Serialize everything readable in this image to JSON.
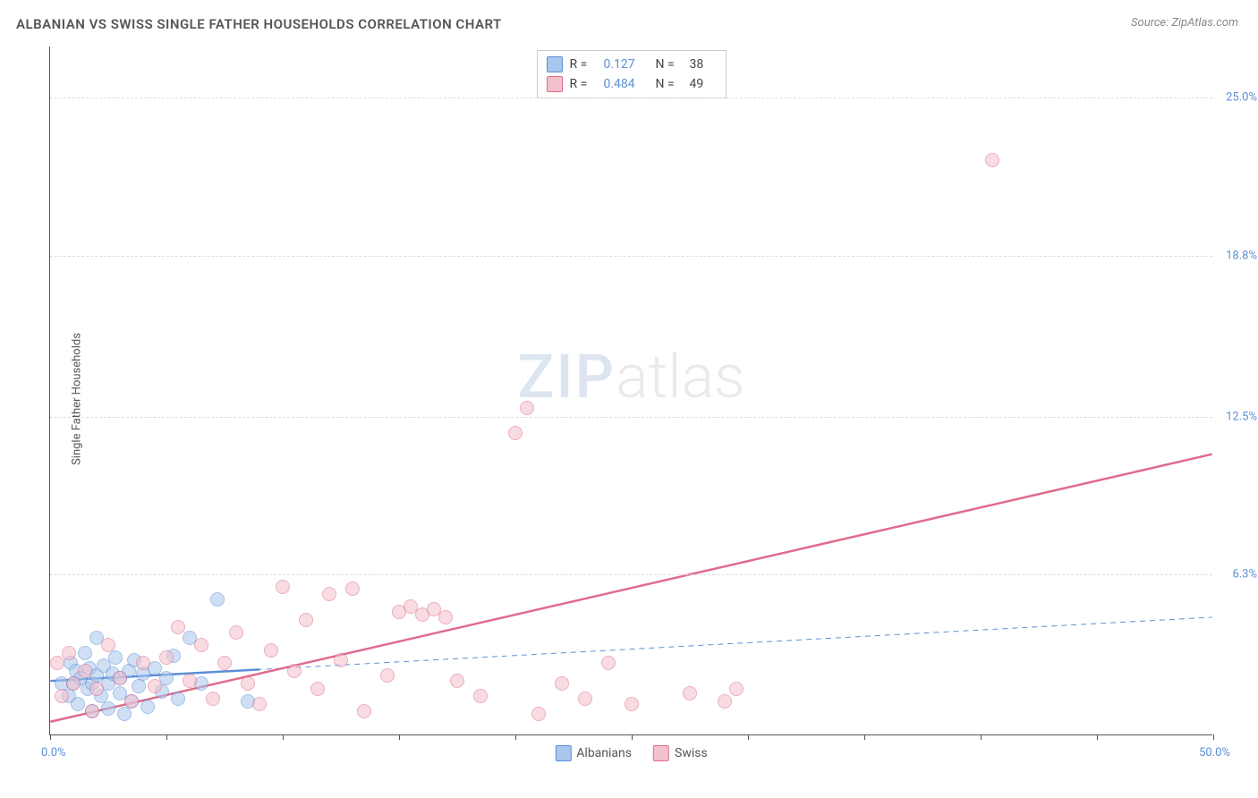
{
  "title": "ALBANIAN VS SWISS SINGLE FATHER HOUSEHOLDS CORRELATION CHART",
  "source_label": "Source:",
  "source_name": "ZipAtlas.com",
  "y_axis_label": "Single Father Households",
  "watermark_zip": "ZIP",
  "watermark_atlas": "atlas",
  "chart": {
    "type": "scatter",
    "background_color": "#ffffff",
    "grid_color": "#dddddd",
    "xlim": [
      0,
      50
    ],
    "ylim": [
      0,
      27
    ],
    "x_ticks": [
      0,
      5,
      10,
      15,
      20,
      25,
      30,
      35,
      40,
      45,
      50
    ],
    "x_tick_label_left": "0.0%",
    "x_tick_label_right": "50.0%",
    "y_gridlines": [
      6.3,
      12.5,
      18.8,
      25.0
    ],
    "y_tick_labels": [
      "6.3%",
      "12.5%",
      "18.8%",
      "25.0%"
    ],
    "marker_radius": 8,
    "marker_opacity": 0.55,
    "axis_label_color": "#5b8fd6",
    "axis_label_fontsize": 13,
    "title_fontsize": 15
  },
  "series": [
    {
      "name": "Albanians",
      "fill_color": "#a9c6ec",
      "stroke_color": "#5b8fd6",
      "R_label": "R =",
      "R": "0.127",
      "N_label": "N =",
      "N": "38",
      "regression": {
        "x1": 0,
        "y1": 2.1,
        "x2": 50,
        "y2": 4.6,
        "dashed": true,
        "width": 1
      },
      "regression_solid_segment": {
        "x1": 0,
        "y1": 2.1,
        "x2": 9,
        "y2": 2.55,
        "width": 2.5
      },
      "points": [
        [
          0.5,
          2.0
        ],
        [
          0.8,
          1.5
        ],
        [
          0.9,
          2.8
        ],
        [
          1.0,
          2.0
        ],
        [
          1.1,
          2.5
        ],
        [
          1.2,
          1.2
        ],
        [
          1.3,
          2.2
        ],
        [
          1.5,
          3.2
        ],
        [
          1.6,
          1.8
        ],
        [
          1.7,
          2.6
        ],
        [
          1.8,
          2.0
        ],
        [
          1.8,
          0.9
        ],
        [
          2.0,
          2.3
        ],
        [
          2.0,
          3.8
        ],
        [
          2.2,
          1.5
        ],
        [
          2.3,
          2.7
        ],
        [
          2.5,
          2.0
        ],
        [
          2.5,
          1.0
        ],
        [
          2.7,
          2.4
        ],
        [
          2.8,
          3.0
        ],
        [
          3.0,
          1.6
        ],
        [
          3.0,
          2.2
        ],
        [
          3.2,
          0.8
        ],
        [
          3.4,
          2.5
        ],
        [
          3.5,
          1.3
        ],
        [
          3.6,
          2.9
        ],
        [
          3.8,
          1.9
        ],
        [
          4.0,
          2.4
        ],
        [
          4.2,
          1.1
        ],
        [
          4.5,
          2.6
        ],
        [
          4.8,
          1.7
        ],
        [
          5.0,
          2.2
        ],
        [
          5.3,
          3.1
        ],
        [
          5.5,
          1.4
        ],
        [
          6.0,
          3.8
        ],
        [
          6.5,
          2.0
        ],
        [
          7.2,
          5.3
        ],
        [
          8.5,
          1.3
        ]
      ]
    },
    {
      "name": "Swiss",
      "fill_color": "#f3c1cc",
      "stroke_color": "#e06b8b",
      "R_label": "R =",
      "R": "0.484",
      "N_label": "N =",
      "N": "49",
      "regression": {
        "x1": 0,
        "y1": 0.5,
        "x2": 50,
        "y2": 11.0,
        "dashed": false,
        "width": 2.5
      },
      "points": [
        [
          0.3,
          2.8
        ],
        [
          0.5,
          1.5
        ],
        [
          0.8,
          3.2
        ],
        [
          1.0,
          2.0
        ],
        [
          1.5,
          2.5
        ],
        [
          1.8,
          0.9
        ],
        [
          2.0,
          1.8
        ],
        [
          2.5,
          3.5
        ],
        [
          3.0,
          2.2
        ],
        [
          3.5,
          1.3
        ],
        [
          4.0,
          2.8
        ],
        [
          4.5,
          1.9
        ],
        [
          5.0,
          3.0
        ],
        [
          5.5,
          4.2
        ],
        [
          6.0,
          2.1
        ],
        [
          6.5,
          3.5
        ],
        [
          7.0,
          1.4
        ],
        [
          7.5,
          2.8
        ],
        [
          8.0,
          4.0
        ],
        [
          8.5,
          2.0
        ],
        [
          9.0,
          1.2
        ],
        [
          9.5,
          3.3
        ],
        [
          10.0,
          5.8
        ],
        [
          10.5,
          2.5
        ],
        [
          11.0,
          4.5
        ],
        [
          11.5,
          1.8
        ],
        [
          12.0,
          5.5
        ],
        [
          12.5,
          2.9
        ],
        [
          13.0,
          5.7
        ],
        [
          13.5,
          0.9
        ],
        [
          14.5,
          2.3
        ],
        [
          15.0,
          4.8
        ],
        [
          15.5,
          5.0
        ],
        [
          16.0,
          4.7
        ],
        [
          16.5,
          4.9
        ],
        [
          17.0,
          4.6
        ],
        [
          17.5,
          2.1
        ],
        [
          18.5,
          1.5
        ],
        [
          20.0,
          11.8
        ],
        [
          20.5,
          12.8
        ],
        [
          21.0,
          0.8
        ],
        [
          22.0,
          2.0
        ],
        [
          23.0,
          1.4
        ],
        [
          24.0,
          2.8
        ],
        [
          25.0,
          1.2
        ],
        [
          27.5,
          1.6
        ],
        [
          29.0,
          1.3
        ],
        [
          40.5,
          22.5
        ],
        [
          29.5,
          1.8
        ]
      ]
    }
  ]
}
